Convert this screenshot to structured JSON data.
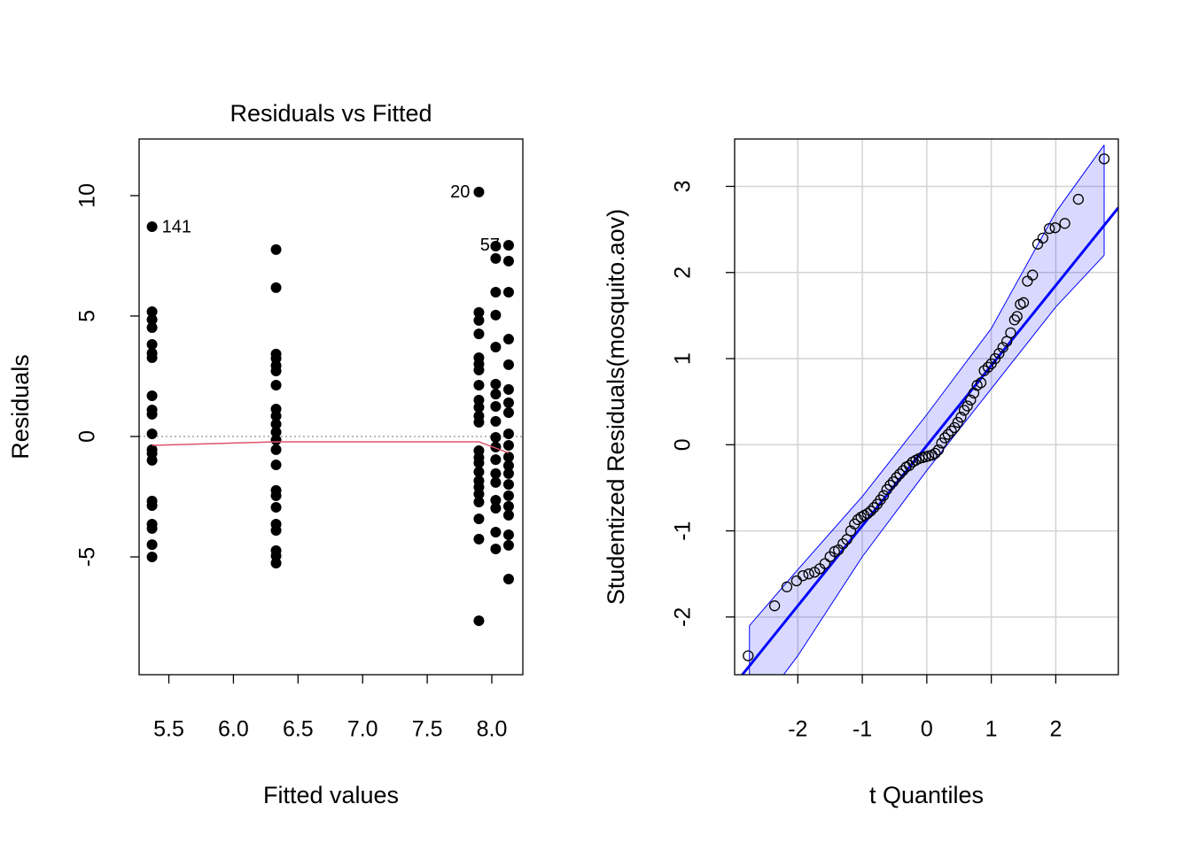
{
  "chart_data": [
    {
      "type": "scatter",
      "title": "Residuals vs Fitted",
      "x_label": "Fitted values",
      "y_label": "Residuals",
      "xlim": [
        5.27,
        8.24
      ],
      "ylim": [
        -9.89,
        12.35
      ],
      "xticks": [
        5.5,
        {
          "value": 6,
          "label": "6.0"
        },
        6.5,
        {
          "value": 7,
          "label": "7.0"
        },
        7.5,
        {
          "value": 8,
          "label": "8.0"
        }
      ],
      "yticks": [
        -5,
        0,
        5,
        10
      ],
      "hline": 0,
      "points": {
        "color": "#000000",
        "x": [
          5.37,
          5.37,
          5.37,
          5.37,
          5.37,
          5.37,
          5.37,
          5.37,
          5.37,
          5.37,
          5.37,
          5.37,
          5.37,
          5.37,
          5.37,
          5.37,
          5.37,
          5.37,
          5.37,
          5.37,
          6.33,
          6.33,
          6.33,
          6.33,
          6.33,
          6.33,
          6.33,
          6.33,
          6.33,
          6.33,
          6.33,
          6.33,
          6.33,
          6.33,
          6.33,
          6.33,
          6.33,
          6.33,
          6.33,
          6.33,
          6.33,
          6.33,
          7.9,
          7.9,
          7.9,
          7.9,
          7.9,
          7.9,
          7.9,
          7.9,
          7.9,
          7.9,
          7.9,
          7.9,
          7.9,
          7.9,
          7.9,
          7.9,
          7.9,
          7.9,
          7.9,
          7.9,
          7.9,
          7.9,
          7.9,
          8.03,
          8.03,
          8.03,
          8.03,
          8.03,
          8.03,
          8.03,
          8.03,
          8.03,
          8.03,
          8.03,
          8.03,
          8.03,
          8.03,
          8.03,
          8.03,
          8.03,
          8.03,
          8.13,
          8.13,
          8.13,
          8.13,
          8.13,
          8.13,
          8.13,
          8.13,
          8.13,
          8.13,
          8.13,
          8.13,
          8.13,
          8.13,
          8.13,
          8.13,
          8.13,
          8.13,
          8.13,
          8.13
        ],
        "values": [
          8.71,
          5.18,
          4.85,
          4.52,
          3.82,
          3.46,
          3.27,
          1.69,
          1.1,
          0.92,
          0.11,
          -0.55,
          -0.7,
          -0.99,
          -2.68,
          -2.87,
          -3.64,
          -3.82,
          -4.49,
          -5.0,
          7.76,
          6.18,
          3.42,
          3.24,
          2.94,
          2.72,
          2.13,
          1.14,
          0.85,
          0.51,
          0.18,
          -0.15,
          -0.55,
          -1.18,
          -2.24,
          -2.46,
          -2.94,
          -3.64,
          -3.9,
          -4.74,
          -4.96,
          -5.26,
          10.15,
          5.15,
          4.82,
          4.26,
          3.27,
          3.01,
          2.76,
          2.13,
          1.51,
          1.21,
          0.85,
          0.59,
          -0.59,
          -0.88,
          -1.1,
          -1.47,
          -1.84,
          -2.1,
          -2.39,
          -2.72,
          -3.42,
          -4.26,
          -7.65,
          7.9,
          7.39,
          5.99,
          5.04,
          3.71,
          2.17,
          1.76,
          1.25,
          0.63,
          -0.04,
          -0.44,
          -0.96,
          -1.54,
          -1.91,
          -2.65,
          -2.98,
          -3.97,
          -4.67,
          7.94,
          7.28,
          5.99,
          4.04,
          2.98,
          1.95,
          1.4,
          0.99,
          0.11,
          -0.37,
          -0.85,
          -1.21,
          -1.54,
          -1.99,
          -2.46,
          -2.9,
          -3.27,
          -4.08,
          -4.52,
          -5.92
        ]
      },
      "smooth": {
        "color": "#DF536B",
        "x": [
          5.37,
          6.33,
          7.9,
          8.13
        ],
        "values": [
          -0.37,
          -0.22,
          -0.22,
          -0.68
        ]
      },
      "annotations": [
        {
          "text": "141",
          "x": 5.37,
          "y": 8.71
        },
        {
          "text": "20",
          "x": 7.9,
          "y": 10.15
        },
        {
          "text": "57",
          "x": 8.13,
          "y": 7.94
        }
      ]
    },
    {
      "type": "qq",
      "x_label": "t Quantiles",
      "y_label": "Studentized Residuals(mosquito.aov)",
      "xlim": [
        -2.98,
        2.97
      ],
      "ylim": [
        -2.67,
        3.55
      ],
      "xticks": [
        -2,
        -1,
        0,
        1,
        2
      ],
      "yticks": [
        -2,
        -1,
        0,
        1,
        2,
        3
      ],
      "grid": true,
      "envelope": {
        "color": "#0000FF",
        "x": [
          -2.75,
          -2.0,
          -1.0,
          0,
          1.0,
          2.0,
          2.75
        ],
        "upper": [
          -2.1,
          -1.45,
          -0.6,
          0.35,
          1.35,
          2.7,
          3.48
        ],
        "lower": [
          -3.2,
          -2.45,
          -1.3,
          -0.3,
          0.65,
          1.6,
          2.2
        ]
      },
      "reference_line": {
        "color": "#0000FF",
        "slope": 0.93,
        "intercept": -0.01
      },
      "points": {
        "color": "#000000",
        "x": [
          -2.77,
          -2.36,
          -2.17,
          -2.02,
          -1.92,
          -1.83,
          -1.74,
          -1.66,
          -1.58,
          -1.5,
          -1.43,
          -1.37,
          -1.3,
          -1.24,
          -1.18,
          -1.12,
          -1.07,
          -1.02,
          -0.97,
          -0.92,
          -0.87,
          -0.82,
          -0.77,
          -0.72,
          -0.67,
          -0.62,
          -0.57,
          -0.52,
          -0.47,
          -0.42,
          -0.37,
          -0.32,
          -0.27,
          -0.22,
          -0.17,
          -0.12,
          -0.07,
          -0.02,
          0.03,
          0.08,
          0.13,
          0.18,
          0.23,
          0.28,
          0.33,
          0.38,
          0.43,
          0.48,
          0.53,
          0.58,
          0.63,
          0.68,
          0.73,
          0.78,
          0.84,
          0.89,
          0.95,
          1.0,
          1.06,
          1.12,
          1.18,
          1.24,
          1.3,
          1.36,
          1.4,
          1.45,
          1.5,
          1.56,
          1.64,
          1.72,
          1.8,
          1.9,
          1.99,
          2.14,
          2.35,
          2.75
        ],
        "values": [
          -2.45,
          -1.87,
          -1.65,
          -1.58,
          -1.52,
          -1.5,
          -1.48,
          -1.44,
          -1.38,
          -1.3,
          -1.24,
          -1.22,
          -1.15,
          -1.1,
          -1.0,
          -0.92,
          -0.87,
          -0.84,
          -0.82,
          -0.8,
          -0.77,
          -0.73,
          -0.69,
          -0.64,
          -0.59,
          -0.52,
          -0.47,
          -0.43,
          -0.38,
          -0.34,
          -0.3,
          -0.26,
          -0.24,
          -0.2,
          -0.18,
          -0.16,
          -0.15,
          -0.14,
          -0.13,
          -0.12,
          -0.1,
          -0.06,
          0.02,
          0.08,
          0.12,
          0.16,
          0.2,
          0.26,
          0.32,
          0.4,
          0.45,
          0.52,
          0.6,
          0.69,
          0.72,
          0.86,
          0.9,
          0.94,
          1.0,
          1.06,
          1.13,
          1.2,
          1.3,
          1.45,
          1.49,
          1.63,
          1.65,
          1.9,
          1.97,
          2.33,
          2.4,
          2.51,
          2.52,
          2.57,
          2.85,
          3.32
        ]
      }
    }
  ]
}
